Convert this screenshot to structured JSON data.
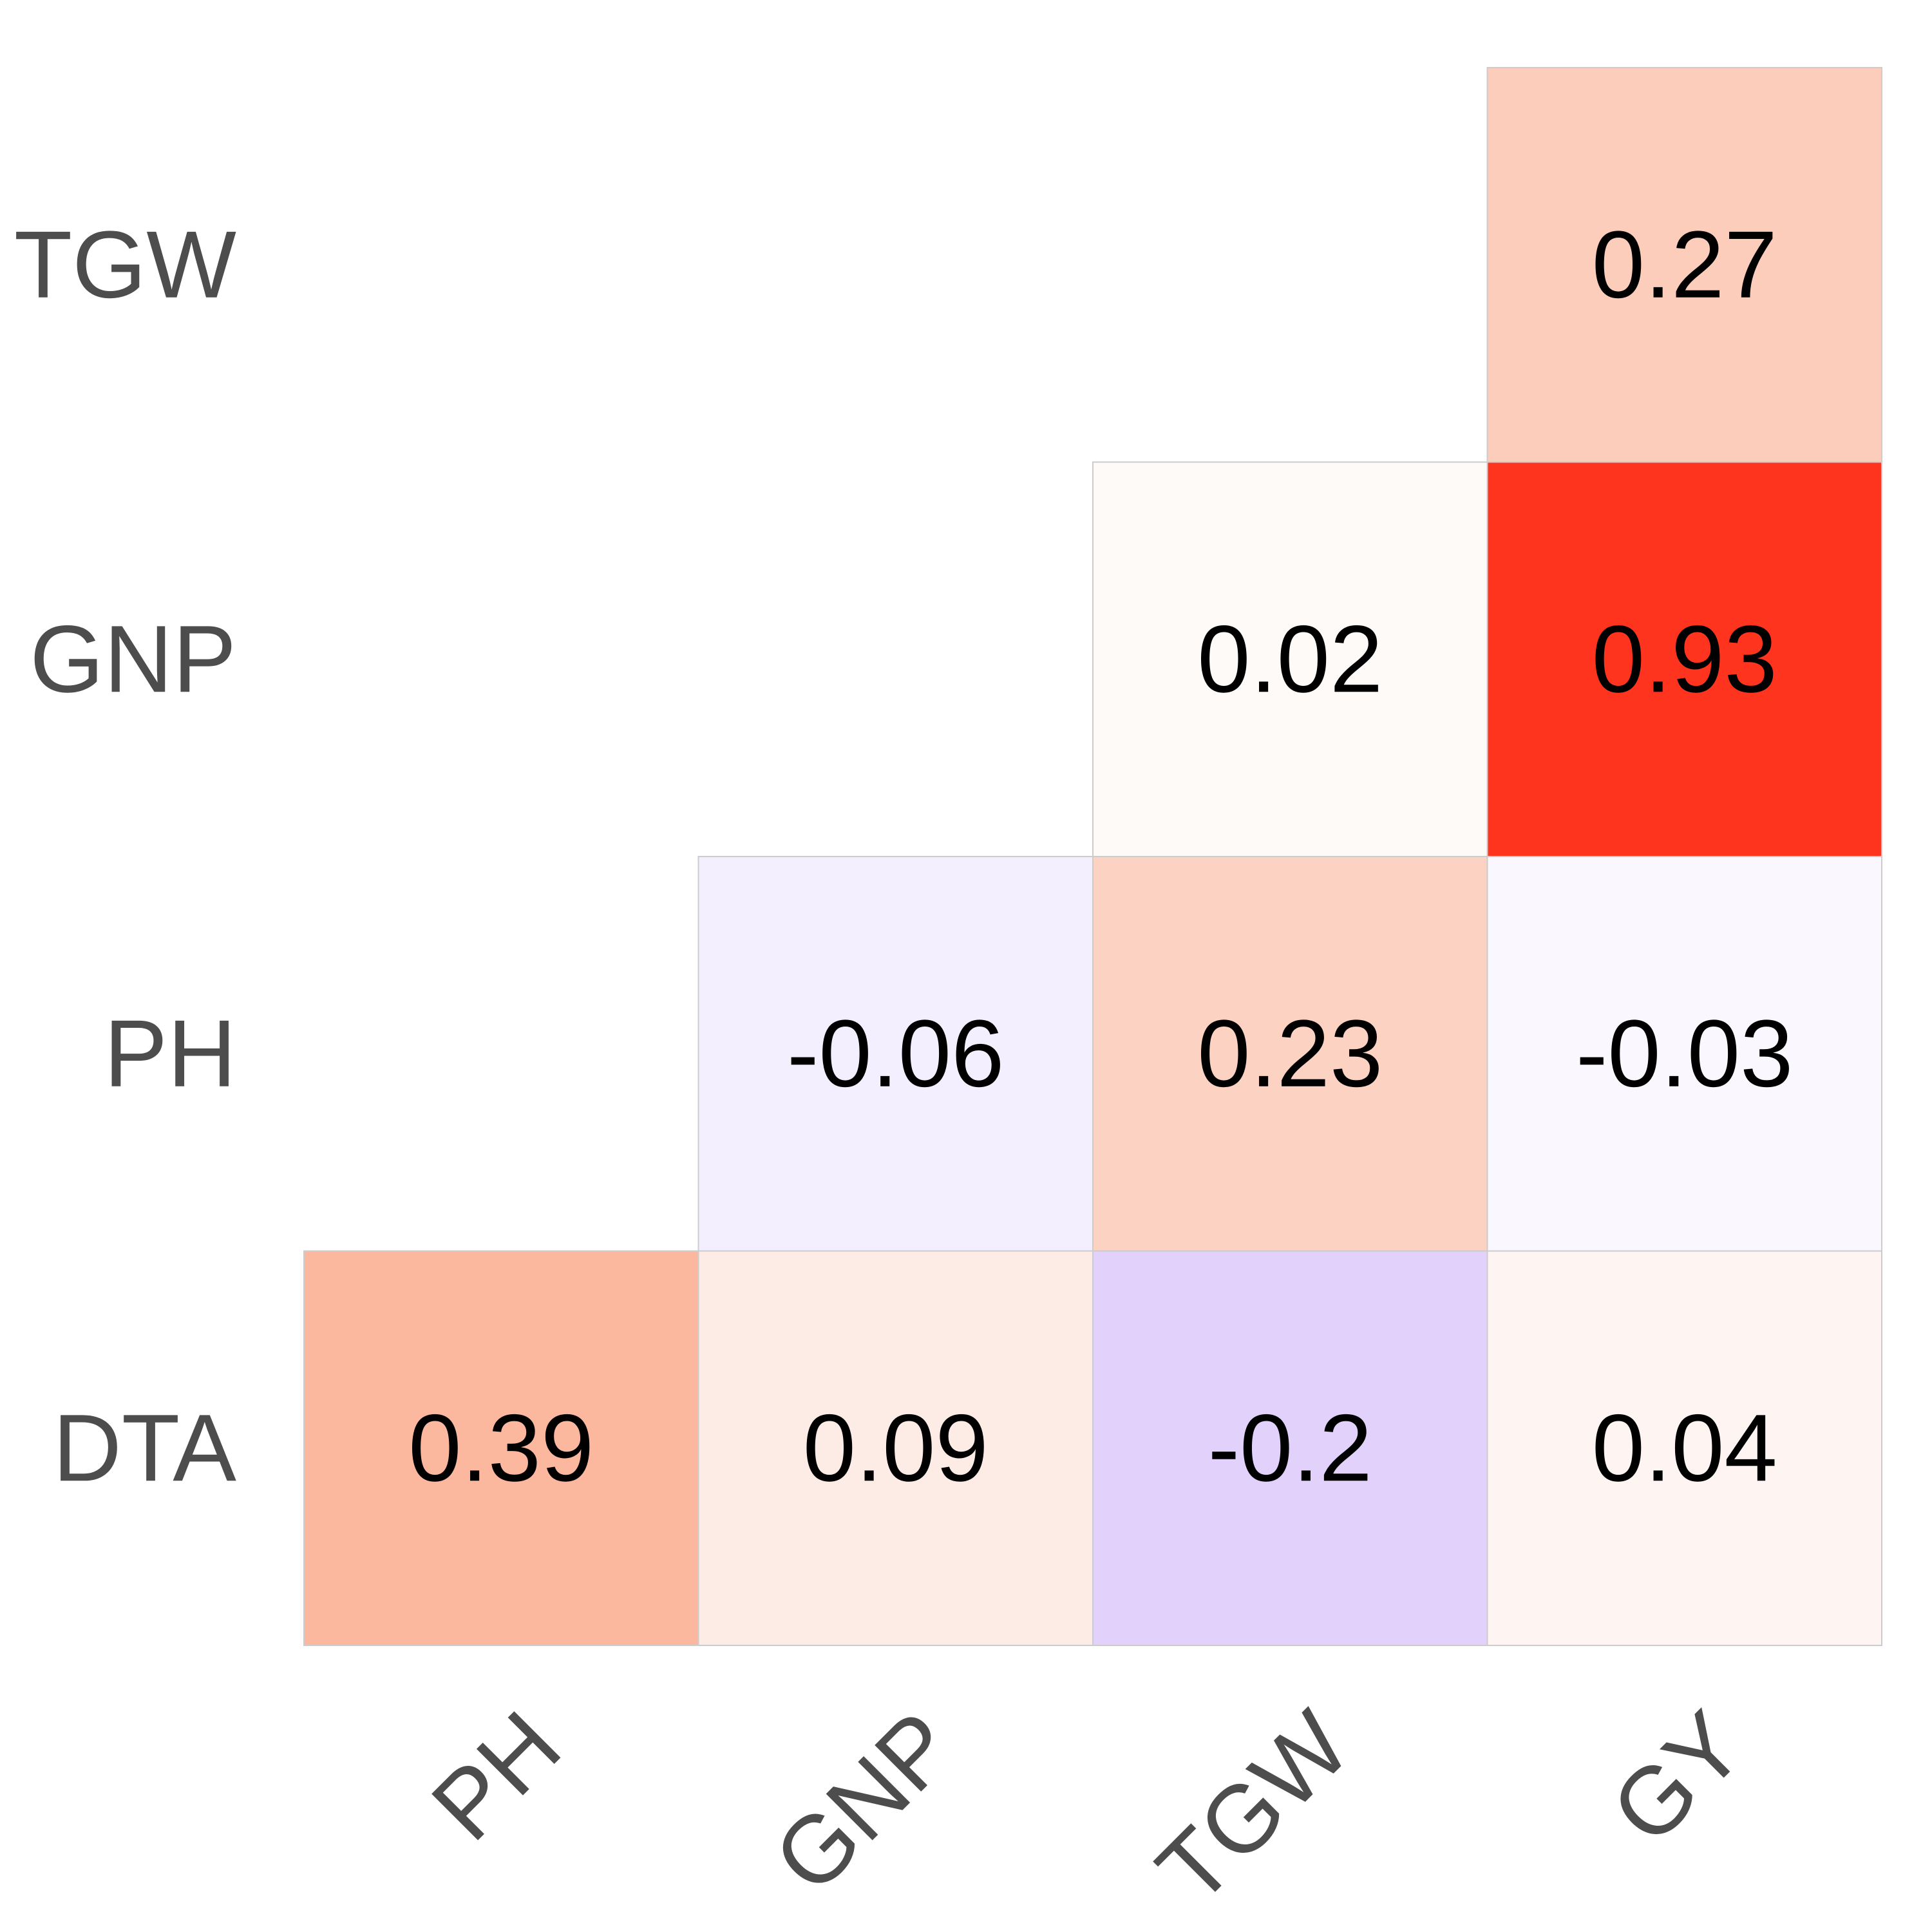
{
  "chart_data": {
    "type": "heatmap",
    "title": "",
    "xlabel": "",
    "ylabel": "",
    "x_categories": [
      "PH",
      "GNP",
      "TGW",
      "GY"
    ],
    "y_categories": [
      "DTA",
      "PH",
      "GNP",
      "TGW"
    ],
    "cells": [
      {
        "x": "PH",
        "y": "DTA",
        "value": 0.39,
        "label": "0.39",
        "color": "#FCB79F"
      },
      {
        "x": "GNP",
        "y": "DTA",
        "value": 0.09,
        "label": "0.09",
        "color": "#FDECE6"
      },
      {
        "x": "TGW",
        "y": "DTA",
        "value": -0.2,
        "label": "-0.2",
        "color": "#E1D1FB"
      },
      {
        "x": "GY",
        "y": "DTA",
        "value": 0.04,
        "label": "0.04",
        "color": "#FEF5F2"
      },
      {
        "x": "GNP",
        "y": "PH",
        "value": -0.06,
        "label": "-0.06",
        "color": "#F4EFFE"
      },
      {
        "x": "TGW",
        "y": "PH",
        "value": 0.23,
        "label": "0.23",
        "color": "#FCD2C3"
      },
      {
        "x": "GY",
        "y": "PH",
        "value": -0.03,
        "label": "-0.03",
        "color": "#FAF8FE"
      },
      {
        "x": "TGW",
        "y": "GNP",
        "value": 0.02,
        "label": "0.02",
        "color": "#FEFAF8"
      },
      {
        "x": "GY",
        "y": "GNP",
        "value": 0.93,
        "label": "0.93",
        "color": "#FF341E"
      },
      {
        "x": "GY",
        "y": "TGW",
        "value": 0.27,
        "label": "0.27",
        "color": "#FCCDBB"
      }
    ],
    "colors": {
      "grid_border": "#cccccc",
      "axis_text": "#4d4d4d",
      "cell_text": "#000000"
    }
  }
}
